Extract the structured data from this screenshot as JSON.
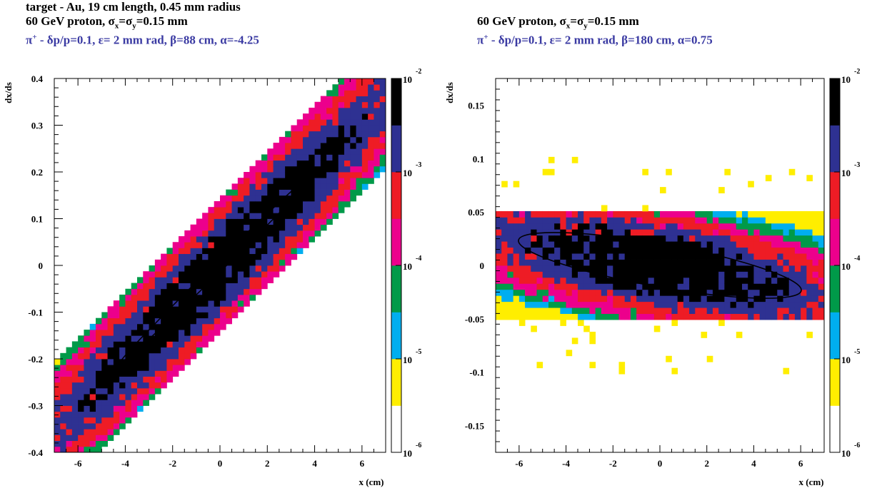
{
  "panels": [
    {
      "header": {
        "line1": "target - Au, 19 cm length, 0.45 mm radius",
        "line2_prefix": "60 GeV proton, ",
        "line2_sigma": "σ",
        "line2_sub_x": "x",
        "line2_eq": "=",
        "line2_sub_y": "y",
        "line2_suffix": "=0.15 mm",
        "line3_pi": "π",
        "line3_sup": "+",
        "line3_rest": " - δp/p=0.1, ε= 2 mm rad, β=88 cm, α=-4.25"
      },
      "xlabel": "x (cm)",
      "ylabel": "dx/ds"
    },
    {
      "header": {
        "line2_prefix": "60 GeV proton, ",
        "line2_sigma": "σ",
        "line2_sub_x": "x",
        "line2_eq": "=",
        "line2_sub_y": "y",
        "line2_suffix": "=0.15 mm",
        "line3_pi": "π",
        "line3_sup": "+",
        "line3_rest": " - δp/p=0.1, ε= 2 mm rad, β=180 cm, α=0.75"
      },
      "xlabel": "x (cm)",
      "ylabel": "dx/ds"
    }
  ],
  "colorscale": {
    "base": "10",
    "exponents": [
      "-2",
      "-3",
      "-4",
      "-5",
      "-6"
    ],
    "colors": [
      "#ffffff",
      "#ffee00",
      "#00aeef",
      "#009a49",
      "#ec008c",
      "#ee1c25",
      "#2e3192",
      "#000000"
    ]
  },
  "chart_data": [
    {
      "type": "heatmap",
      "title": "target - Au, 19 cm length, 0.45 mm radius",
      "xlabel": "x (cm)",
      "ylabel": "dx/ds",
      "xlim": [
        -7,
        7
      ],
      "ylim": [
        -0.4,
        0.4
      ],
      "xticks": [
        "-6",
        "-4",
        "-2",
        "0",
        "2",
        "4",
        "6"
      ],
      "yticks": [
        "-0.4",
        "-0.3",
        "-0.2",
        "-0.1",
        "0",
        "0.1",
        "0.2",
        "0.3",
        "0.4"
      ],
      "colorbar": {
        "scale": "log",
        "min": 1e-06,
        "max": 0.01
      },
      "distribution": {
        "kind": "correlated",
        "slope": 0.05,
        "sigma_along_x": 2.6,
        "sigma_across": 0.045
      },
      "ellipse": {
        "center": [
          0,
          0
        ],
        "alpha": -4.25,
        "beta_cm": 88,
        "emittance_mm_rad": 2
      }
    },
    {
      "type": "heatmap",
      "xlabel": "x (cm)",
      "ylabel": "dx/ds",
      "xlim": [
        -7,
        7
      ],
      "ylim": [
        -0.175,
        0.175
      ],
      "xticks": [
        "-6",
        "-4",
        "-2",
        "0",
        "2",
        "4",
        "6"
      ],
      "yticks": [
        "-0.15",
        "-0.1",
        "-0.05",
        "0",
        "0.05",
        "0.1",
        "0.15"
      ],
      "colorbar": {
        "scale": "log",
        "min": 1e-06,
        "max": 0.01
      },
      "distribution": {
        "kind": "band",
        "slope": -0.004,
        "sigma_x": 3.2,
        "sigma_y": 0.017
      },
      "ellipse": {
        "center": [
          0,
          0
        ],
        "alpha": 0.75,
        "beta_cm": 180,
        "emittance_mm_rad": 2
      }
    }
  ]
}
